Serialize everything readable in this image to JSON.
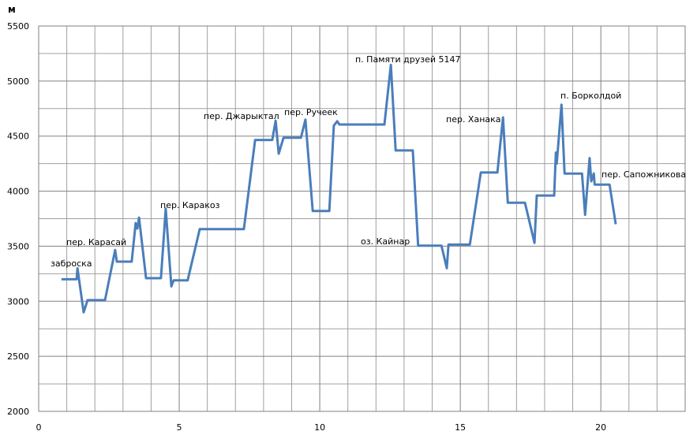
{
  "chart_data": {
    "type": "line",
    "y_label": "м",
    "x": [
      0.81,
      1.35,
      1.38,
      1.6,
      1.74,
      2.36,
      2.72,
      2.78,
      3.31,
      3.45,
      3.51,
      3.57,
      3.82,
      4.35,
      4.52,
      4.72,
      4.8,
      5.3,
      5.73,
      7.3,
      7.7,
      8.31,
      8.43,
      8.54,
      8.71,
      9.33,
      9.49,
      9.75,
      10.34,
      10.5,
      10.62,
      10.7,
      12.3,
      12.53,
      12.7,
      13.31,
      13.5,
      14.33,
      14.52,
      14.58,
      15.34,
      15.73,
      16.32,
      16.52,
      16.69,
      17.3,
      17.64,
      17.72,
      18.34,
      18.4,
      18.43,
      18.6,
      18.71,
      19.33,
      19.44,
      19.6,
      19.66,
      19.75,
      19.78,
      20.31,
      20.53
    ],
    "series": [
      {
        "color": "#4a7ebb",
        "values": [
          3200,
          3200,
          3300,
          2900,
          3010,
          3010,
          3465,
          3360,
          3360,
          3710,
          3660,
          3760,
          3210,
          3210,
          3840,
          3135,
          3190,
          3190,
          3655,
          3655,
          4465,
          4465,
          4640,
          4340,
          4485,
          4485,
          4650,
          3820,
          3820,
          4595,
          4635,
          4605,
          4605,
          5147,
          4370,
          4370,
          3505,
          3505,
          3300,
          3515,
          3515,
          4170,
          4170,
          4670,
          3895,
          3895,
          3530,
          3960,
          3960,
          4350,
          4250,
          4785,
          4160,
          4160,
          3785,
          4300,
          4090,
          4160,
          4060,
          4060,
          3700
        ]
      }
    ],
    "xlim": [
      0,
      23
    ],
    "ylim": [
      2000,
      5500
    ],
    "xticks": [
      0,
      5,
      10,
      15,
      20
    ],
    "yticks": [
      2000,
      2500,
      3000,
      3500,
      4000,
      4500,
      5000,
      5500
    ],
    "xminorticks": [
      1,
      2,
      3,
      4,
      6,
      7,
      8,
      9,
      11,
      12,
      13,
      14,
      16,
      17,
      18,
      19,
      21,
      22
    ],
    "yminorticks": [
      2250,
      2750,
      3250,
      3750,
      4250,
      4750,
      5250
    ],
    "grid": true,
    "annotations": [
      "заброска",
      "пер. Карасай",
      "пер. Каракоз",
      "пер. Джарыктал",
      "пер. Ручеек",
      "п. Памяти друзей 5147",
      "оз. Кайнар",
      "пер. Ханака",
      "п. Борколдой",
      "пер. Сапожникова"
    ]
  }
}
